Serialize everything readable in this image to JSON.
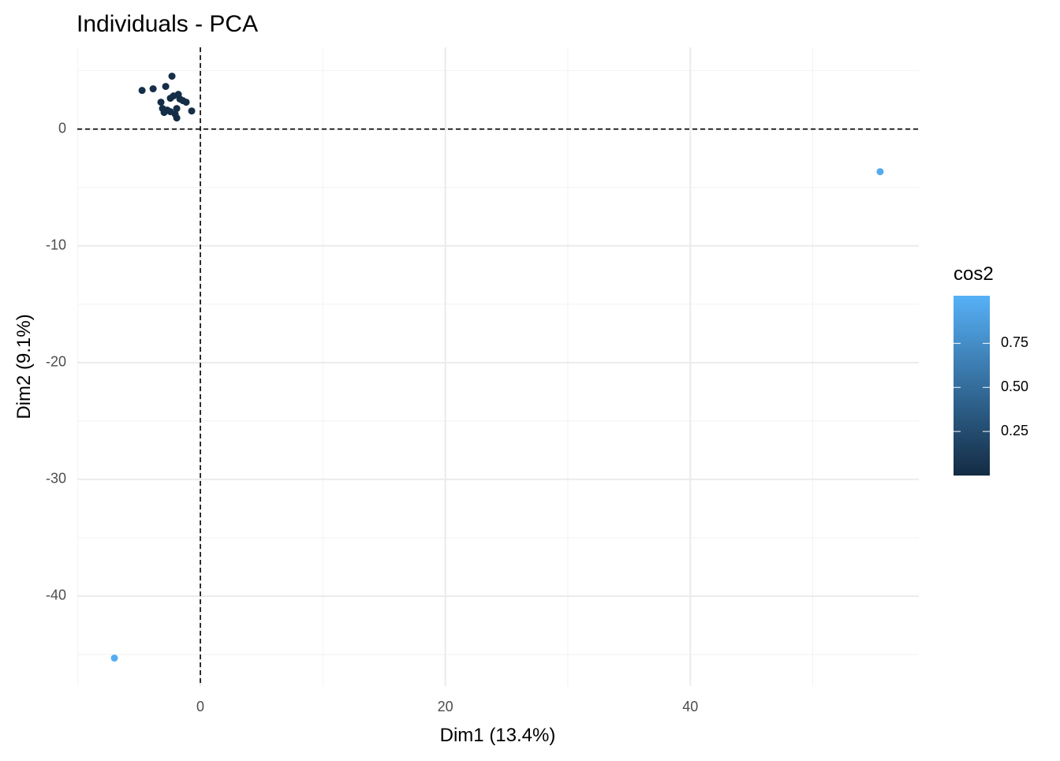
{
  "chart_data": {
    "type": "scatter",
    "title": "Individuals - PCA",
    "x_label": "Dim1 (13.4%)",
    "y_label": "Dim2 (9.1%)",
    "xlim": [
      -10.05,
      58.66
    ],
    "ylim": [
      -47.7,
      7.0
    ],
    "xticks": [
      0,
      20,
      40
    ],
    "yticks": [
      0,
      -10,
      -20,
      -30,
      -40
    ],
    "x_minor_ticks": [
      -10,
      10,
      30,
      50
    ],
    "y_minor_ticks": [
      5,
      -5,
      -15,
      -25,
      -35,
      -45
    ],
    "grid": true,
    "hline": 0,
    "vline": 0,
    "series": [
      {
        "name": "cos2",
        "x": [
          -4.76,
          -3.86,
          -2.83,
          -2.32,
          -3.22,
          -3.09,
          -2.96,
          -2.45,
          -2.45,
          -2.06,
          -1.93,
          -1.8,
          -1.67,
          -1.42,
          -1.16,
          -1.93,
          -0.71,
          -2.19,
          -2.7,
          55.5,
          -7.02
        ],
        "values": [
          3.31,
          3.45,
          3.65,
          4.53,
          2.3,
          1.76,
          1.42,
          2.64,
          1.49,
          1.28,
          1.76,
          2.97,
          2.57,
          2.43,
          2.3,
          0.95,
          1.55,
          2.84,
          1.62,
          -3.65,
          -45.3
        ],
        "cos2": [
          0.03,
          0.03,
          0.02,
          0.03,
          0.02,
          0.02,
          0.02,
          0.02,
          0.02,
          0.02,
          0.02,
          0.03,
          0.02,
          0.02,
          0.02,
          0.01,
          0.02,
          0.02,
          0.02,
          0.97,
          0.99
        ]
      }
    ],
    "colorbar": {
      "title": "cos2",
      "lim": [
        0.0,
        1.02
      ],
      "ticks": [
        0.25,
        {
          "value": 0.5,
          "label": "0.50"
        },
        0.75
      ],
      "low": "#132B43",
      "high": "#56B1F7"
    }
  }
}
